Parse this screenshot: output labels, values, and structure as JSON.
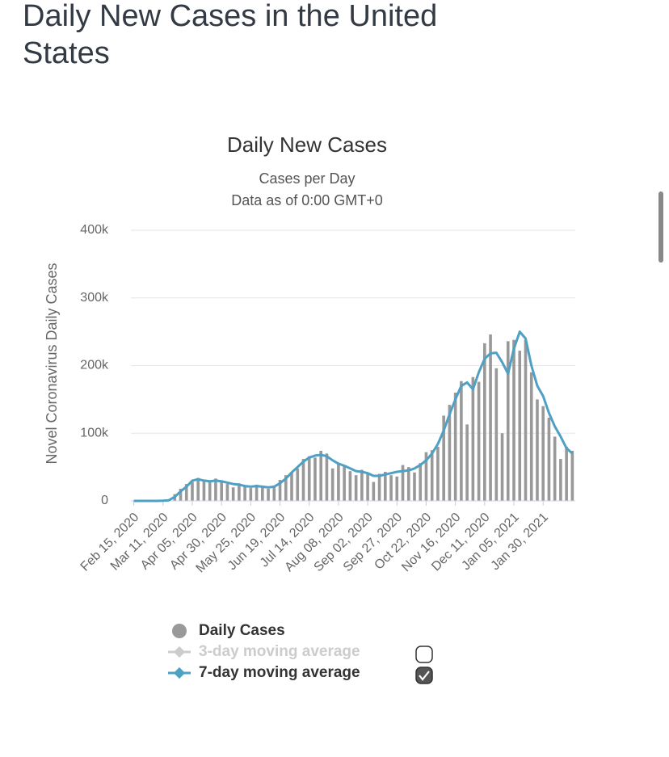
{
  "page_title": "Daily New Cases in the United States",
  "chart_data": {
    "type": "bar",
    "title": "Daily New Cases",
    "subtitle": [
      "Cases per Day",
      "Data as of 0:00 GMT+0"
    ],
    "y_label": "Novel Coronavirus Daily Cases",
    "categories": [
      "Feb 15, 2020",
      null,
      null,
      null,
      null,
      "Mar 11, 2020",
      null,
      null,
      null,
      null,
      "Apr 05, 2020",
      null,
      null,
      null,
      null,
      "Apr 30, 2020",
      null,
      null,
      null,
      null,
      "May 25, 2020",
      null,
      null,
      null,
      null,
      "Jun 19, 2020",
      null,
      null,
      null,
      null,
      "Jul 14, 2020",
      null,
      null,
      null,
      null,
      "Aug 08, 2020",
      null,
      null,
      null,
      null,
      "Sep 02, 2020",
      null,
      null,
      null,
      null,
      "Sep 27, 2020",
      null,
      null,
      null,
      null,
      "Oct 22, 2020",
      null,
      null,
      null,
      null,
      "Nov 16, 2020",
      null,
      null,
      null,
      null,
      "Dec 11, 2020",
      null,
      null,
      null,
      null,
      "Jan 05, 2021",
      null,
      null,
      null,
      null,
      "Jan 30, 2021",
      null,
      null,
      null,
      null,
      null
    ],
    "series": [
      {
        "name": "Daily Cases",
        "color": "#999999",
        "values": [
          0,
          0,
          0,
          0,
          100,
          400,
          1800,
          10000,
          18000,
          25000,
          28000,
          34000,
          29000,
          28000,
          33000,
          30000,
          25000,
          20000,
          26000,
          22000,
          19000,
          24000,
          21000,
          18000,
          20000,
          31000,
          38000,
          42000,
          48000,
          62000,
          66000,
          64000,
          74000,
          70000,
          48000,
          56000,
          53000,
          44000,
          38000,
          46000,
          40000,
          28000,
          40000,
          43000,
          38000,
          36000,
          53000,
          50000,
          42000,
          56000,
          72000,
          75000,
          80000,
          126000,
          142000,
          160000,
          177000,
          113000,
          183000,
          176000,
          233000,
          246000,
          196000,
          100000,
          236000,
          238000,
          222000,
          238000,
          190000,
          150000,
          140000,
          123000,
          95000,
          62000,
          80000,
          74000
        ]
      },
      {
        "name": "3-day moving average",
        "color": "#cccccc",
        "visible": false,
        "checked": false
      },
      {
        "name": "7-day moving average",
        "color": "#4ea0c4",
        "checked": true,
        "values": [
          0,
          0,
          0,
          0,
          50,
          200,
          1000,
          6000,
          14000,
          21000,
          30000,
          32000,
          30000,
          29000,
          30000,
          29000,
          27000,
          25000,
          24000,
          22000,
          21000,
          22000,
          21000,
          20000,
          21000,
          26000,
          33000,
          42000,
          50000,
          58000,
          64000,
          67000,
          68000,
          66000,
          60000,
          55000,
          52000,
          48000,
          44000,
          43000,
          41000,
          37000,
          37000,
          39000,
          41000,
          43000,
          44000,
          45000,
          48000,
          53000,
          60000,
          70000,
          84000,
          104000,
          128000,
          150000,
          170000,
          175000,
          165000,
          190000,
          210000,
          218000,
          219000,
          205000,
          188000,
          225000,
          250000,
          240000,
          200000,
          170000,
          155000,
          130000,
          110000,
          95000,
          78000,
          70000
        ]
      }
    ],
    "ylim": [
      0,
      400000
    ],
    "yticks": [
      0,
      {
        "value": 100000,
        "label": "100k"
      },
      {
        "value": 200000,
        "label": "200k"
      },
      {
        "value": 300000,
        "label": "300k"
      },
      {
        "value": 400000,
        "label": "400k"
      }
    ],
    "grid": true
  }
}
